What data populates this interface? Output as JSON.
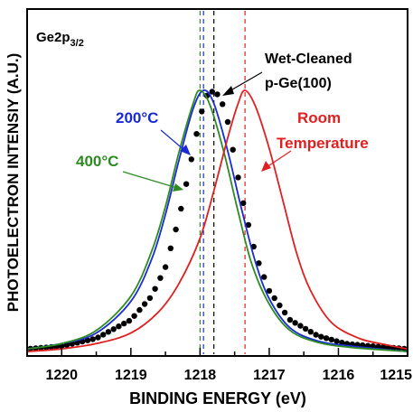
{
  "chart_data": {
    "type": "line",
    "ylabel": "PHOTOELECTRON INTENSIY (A.U.)",
    "xlabel": "BINDING ENERGY (eV)",
    "xlim": [
      1220.5,
      1215
    ],
    "x_reversed": true,
    "x_ticks": [
      "1220",
      "1219",
      "1218",
      "1217",
      "1216",
      "1215"
    ],
    "x_tick_values": [
      1220,
      1219,
      1218,
      1217,
      1216,
      1215
    ],
    "y_scale": "arbitrary",
    "grid": false,
    "panel_label": {
      "base": "Ge2p",
      "sub": "3/2"
    },
    "series": [
      {
        "name": "Wet-Cleaned p-Ge(100)",
        "style": "dots",
        "color": "#000000",
        "peak_ev": 1217.8,
        "points": [
          [
            1220.5,
            0.02
          ],
          [
            1220,
            0.03
          ],
          [
            1219.5,
            0.06
          ],
          [
            1219,
            0.13
          ],
          [
            1218.7,
            0.22
          ],
          [
            1218.5,
            0.33
          ],
          [
            1218.3,
            0.52
          ],
          [
            1218.1,
            0.77
          ],
          [
            1218,
            0.9
          ],
          [
            1217.9,
            0.98
          ],
          [
            1217.8,
            1.0
          ],
          [
            1217.7,
            0.97
          ],
          [
            1217.6,
            0.88
          ],
          [
            1217.5,
            0.74
          ],
          [
            1217.4,
            0.6
          ],
          [
            1217.2,
            0.38
          ],
          [
            1217,
            0.24
          ],
          [
            1216.7,
            0.13
          ],
          [
            1216.3,
            0.07
          ],
          [
            1215.9,
            0.04
          ],
          [
            1215.5,
            0.03
          ],
          [
            1215,
            0.02
          ]
        ]
      },
      {
        "name": "200°C",
        "style": "line",
        "color": "#1a2bd6",
        "peak_ev": 1217.95,
        "points": [
          [
            1220.5,
            0.02
          ],
          [
            1220,
            0.04
          ],
          [
            1219.5,
            0.08
          ],
          [
            1219,
            0.2
          ],
          [
            1218.7,
            0.36
          ],
          [
            1218.5,
            0.53
          ],
          [
            1218.3,
            0.74
          ],
          [
            1218.1,
            0.93
          ],
          [
            1217.95,
            1.0
          ],
          [
            1217.8,
            0.95
          ],
          [
            1217.6,
            0.77
          ],
          [
            1217.4,
            0.55
          ],
          [
            1217.2,
            0.35
          ],
          [
            1217,
            0.21
          ],
          [
            1216.7,
            0.1
          ],
          [
            1216.3,
            0.05
          ],
          [
            1215.8,
            0.03
          ],
          [
            1215,
            0.01
          ]
        ]
      },
      {
        "name": "400°C",
        "style": "line",
        "color": "#2e8b22",
        "peak_ev": 1218.0,
        "points": [
          [
            1220.5,
            0.02
          ],
          [
            1220,
            0.04
          ],
          [
            1219.5,
            0.09
          ],
          [
            1219,
            0.22
          ],
          [
            1218.7,
            0.39
          ],
          [
            1218.5,
            0.56
          ],
          [
            1218.3,
            0.77
          ],
          [
            1218.1,
            0.95
          ],
          [
            1218,
            1.0
          ],
          [
            1217.85,
            0.94
          ],
          [
            1217.65,
            0.76
          ],
          [
            1217.45,
            0.54
          ],
          [
            1217.25,
            0.34
          ],
          [
            1217,
            0.19
          ],
          [
            1216.7,
            0.09
          ],
          [
            1216.3,
            0.045
          ],
          [
            1215.8,
            0.025
          ],
          [
            1215,
            0.01
          ]
        ]
      },
      {
        "name": "Room Temperature",
        "style": "line",
        "color": "#e02020",
        "peak_ev": 1217.35,
        "points": [
          [
            1220.5,
            0.01
          ],
          [
            1220,
            0.02
          ],
          [
            1219.5,
            0.04
          ],
          [
            1219,
            0.08
          ],
          [
            1218.6,
            0.16
          ],
          [
            1218.3,
            0.27
          ],
          [
            1218,
            0.44
          ],
          [
            1217.8,
            0.62
          ],
          [
            1217.6,
            0.82
          ],
          [
            1217.45,
            0.95
          ],
          [
            1217.35,
            1.0
          ],
          [
            1217.2,
            0.94
          ],
          [
            1217,
            0.78
          ],
          [
            1216.8,
            0.58
          ],
          [
            1216.6,
            0.38
          ],
          [
            1216.4,
            0.24
          ],
          [
            1216.1,
            0.12
          ],
          [
            1215.7,
            0.06
          ],
          [
            1215.3,
            0.035
          ],
          [
            1215,
            0.02
          ]
        ]
      }
    ],
    "annotations": [
      {
        "text": "Wet-Cleaned",
        "color": "#000000"
      },
      {
        "text": "p-Ge(100)",
        "color": "#000000"
      },
      {
        "text": "200°C",
        "color": "#1a2bd6"
      },
      {
        "text": "400°C",
        "color": "#2e8b22"
      },
      {
        "text": "Room",
        "color": "#e02020"
      },
      {
        "text": "Temperature",
        "color": "#e02020"
      }
    ]
  }
}
